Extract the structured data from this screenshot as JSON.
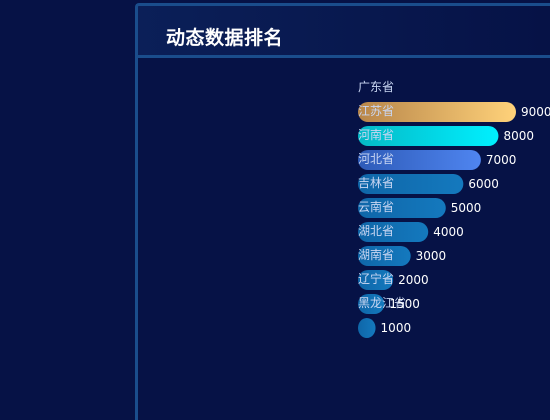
{
  "panel": {
    "title": "动态数据排名"
  },
  "colors": {
    "background": "#061246",
    "panel_border": "#1a4d8c",
    "bar_gradients": [
      [
        "#b8864a",
        "#ffd27a"
      ],
      [
        "#05b9c6",
        "#00f0ff"
      ],
      [
        "#2e5bb8",
        "#4f85f0"
      ],
      [
        "#0f66a8",
        "#1479be"
      ],
      [
        "#0f66a8",
        "#1479be"
      ],
      [
        "#0f66a8",
        "#1479be"
      ],
      [
        "#0f66a8",
        "#1479be"
      ],
      [
        "#0f66a8",
        "#1479be"
      ],
      [
        "#0f66a8",
        "#1479be"
      ],
      [
        "#0f66a8",
        "#1479be"
      ]
    ]
  },
  "chart_data": {
    "type": "bar",
    "orientation": "horizontal",
    "title": "动态数据排名",
    "categories": [
      "广东省",
      "江苏省",
      "河南省",
      "河北省",
      "吉林省",
      "云南省",
      "湖北省",
      "湖南省",
      "辽宁省",
      "黑龙江省"
    ],
    "values": [
      9000,
      8000,
      7000,
      6000,
      5000,
      4000,
      3000,
      2000,
      1500,
      1000
    ],
    "xlim": [
      0,
      9000
    ],
    "grid": false
  }
}
